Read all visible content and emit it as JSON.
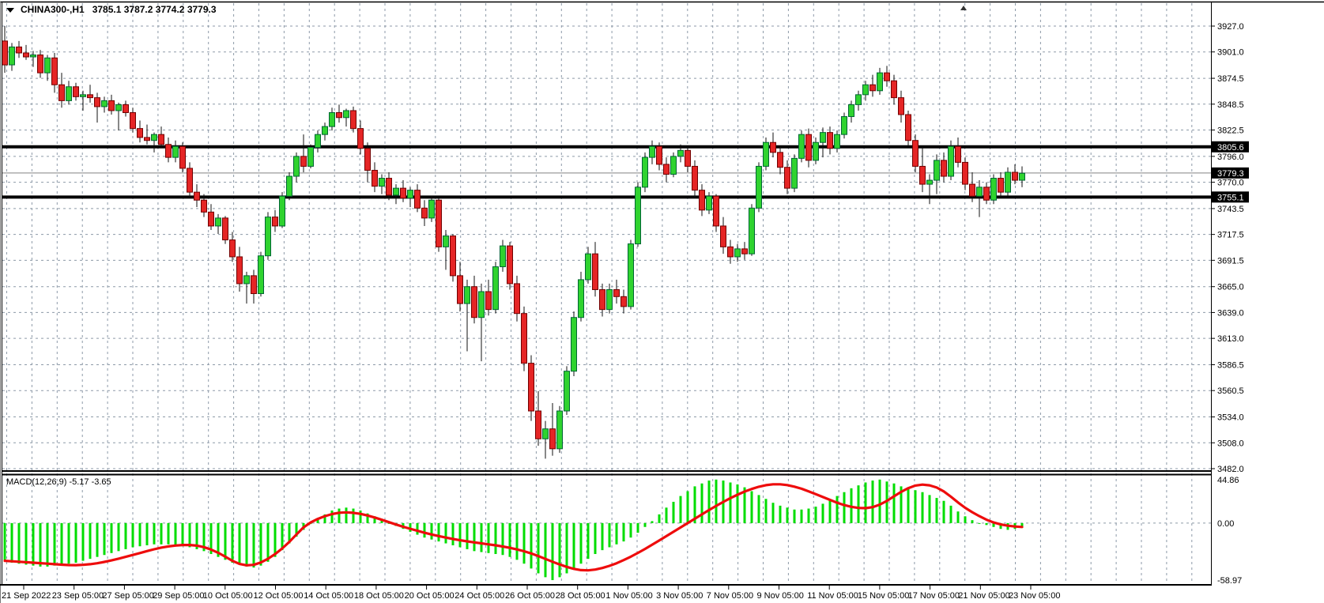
{
  "window": {
    "symbol_period": "CHINA300-,H1",
    "quote_line": "3785.1 3787.2 3774.2 3779.3"
  },
  "indicator": {
    "label": "MACD(12,26,9) -5.17 -3.65"
  },
  "colors": {
    "background": "#ffffff",
    "grid": "#8d9aa8",
    "bull_fill": "#2fd32f",
    "bull_stroke": "#063",
    "bear_fill": "#e52525",
    "bear_stroke": "#710000",
    "wick": "#111111",
    "macd_bar": "#00dd00",
    "macd_signal": "#ee0c0c",
    "level_line": "#000000",
    "price_line": "#9c9c9c",
    "axis_text": "#000000",
    "tag_bg": "#000000",
    "tag_text": "#ffffff"
  },
  "chart_data": {
    "type": "candlestick",
    "symbol": "CHINA300",
    "timeframe": "H1",
    "title": "CHINA300-,H1  3785.1 3787.2 3774.2 3779.3",
    "quote": {
      "open": 3785.1,
      "high": 3787.2,
      "low": 3774.2,
      "close": 3779.3
    },
    "current_price": 3779.3,
    "levels": [
      3805.6,
      3755.1
    ],
    "price_axis_ticks": [
      3927.0,
      3901.0,
      3874.5,
      3848.5,
      3822.5,
      3796.0,
      3770.0,
      3743.5,
      3717.5,
      3691.5,
      3665.0,
      3639.0,
      3613.0,
      3586.5,
      3560.5,
      3534.0,
      3508.0,
      3482.0
    ],
    "price_tags": [
      3805.6,
      3779.3,
      3755.1
    ],
    "ylim": [
      3482.0,
      3927.0
    ],
    "x_labels": [
      "21 Sep 2022",
      "23 Sep 05:00",
      "27 Sep 05:00",
      "29 Sep 05:00",
      "10 Oct 05:00",
      "12 Oct 05:00",
      "14 Oct 05:00",
      "18 Oct 05:00",
      "20 Oct 05:00",
      "24 Oct 05:00",
      "26 Oct 05:00",
      "28 Oct 05:00",
      "1 Nov 05:00",
      "3 Nov 05:00",
      "7 Nov 05:00",
      "9 Nov 05:00",
      "11 Nov 05:00",
      "15 Nov 05:00",
      "17 Nov 05:00",
      "21 Nov 05:00",
      "23 Nov 05:00"
    ],
    "candles": [
      [
        3912,
        3927,
        3880,
        3888
      ],
      [
        3888,
        3910,
        3882,
        3906
      ],
      [
        3906,
        3912,
        3895,
        3900
      ],
      [
        3900,
        3908,
        3893,
        3896
      ],
      [
        3896,
        3902,
        3886,
        3898
      ],
      [
        3898,
        3903,
        3875,
        3880
      ],
      [
        3880,
        3898,
        3872,
        3895
      ],
      [
        3895,
        3900,
        3860,
        3868
      ],
      [
        3868,
        3880,
        3845,
        3852
      ],
      [
        3852,
        3872,
        3848,
        3866
      ],
      [
        3866,
        3870,
        3852,
        3856
      ],
      [
        3856,
        3862,
        3842,
        3858
      ],
      [
        3858,
        3868,
        3850,
        3855
      ],
      [
        3855,
        3860,
        3830,
        3846
      ],
      [
        3846,
        3856,
        3840,
        3852
      ],
      [
        3852,
        3858,
        3838,
        3842
      ],
      [
        3842,
        3850,
        3822,
        3848
      ],
      [
        3848,
        3852,
        3836,
        3840
      ],
      [
        3840,
        3845,
        3820,
        3824
      ],
      [
        3824,
        3832,
        3810,
        3815
      ],
      [
        3815,
        3828,
        3808,
        3812
      ],
      [
        3812,
        3820,
        3800,
        3818
      ],
      [
        3818,
        3826,
        3805,
        3808
      ],
      [
        3808,
        3815,
        3790,
        3795
      ],
      [
        3795,
        3812,
        3790,
        3806
      ],
      [
        3806,
        3810,
        3780,
        3784
      ],
      [
        3784,
        3790,
        3755,
        3760
      ],
      [
        3760,
        3768,
        3745,
        3752
      ],
      [
        3752,
        3758,
        3735,
        3740
      ],
      [
        3740,
        3748,
        3722,
        3726
      ],
      [
        3726,
        3738,
        3718,
        3734
      ],
      [
        3734,
        3736,
        3708,
        3712
      ],
      [
        3712,
        3720,
        3690,
        3695
      ],
      [
        3695,
        3705,
        3660,
        3668
      ],
      [
        3668,
        3680,
        3648,
        3676
      ],
      [
        3676,
        3682,
        3648,
        3658
      ],
      [
        3658,
        3700,
        3655,
        3696
      ],
      [
        3696,
        3740,
        3692,
        3735
      ],
      [
        3735,
        3742,
        3720,
        3726
      ],
      [
        3726,
        3760,
        3724,
        3756
      ],
      [
        3756,
        3780,
        3752,
        3776
      ],
      [
        3776,
        3800,
        3770,
        3796
      ],
      [
        3796,
        3818,
        3780,
        3786
      ],
      [
        3786,
        3808,
        3784,
        3805
      ],
      [
        3805,
        3822,
        3800,
        3818
      ],
      [
        3818,
        3830,
        3812,
        3826
      ],
      [
        3826,
        3845,
        3822,
        3840
      ],
      [
        3840,
        3848,
        3830,
        3835
      ],
      [
        3835,
        3844,
        3826,
        3842
      ],
      [
        3842,
        3846,
        3820,
        3824
      ],
      [
        3824,
        3832,
        3798,
        3804
      ],
      [
        3804,
        3810,
        3770,
        3782
      ],
      [
        3782,
        3790,
        3760,
        3766
      ],
      [
        3766,
        3778,
        3758,
        3774
      ],
      [
        3774,
        3780,
        3752,
        3757
      ],
      [
        3757,
        3768,
        3748,
        3764
      ],
      [
        3764,
        3772,
        3750,
        3754
      ],
      [
        3754,
        3765,
        3745,
        3762
      ],
      [
        3762,
        3768,
        3740,
        3744
      ],
      [
        3744,
        3752,
        3726,
        3734
      ],
      [
        3734,
        3756,
        3730,
        3752
      ],
      [
        3752,
        3754,
        3700,
        3705
      ],
      [
        3705,
        3722,
        3682,
        3716
      ],
      [
        3716,
        3718,
        3670,
        3676
      ],
      [
        3676,
        3690,
        3640,
        3648
      ],
      [
        3648,
        3672,
        3600,
        3665
      ],
      [
        3665,
        3676,
        3628,
        3634
      ],
      [
        3634,
        3668,
        3590,
        3660
      ],
      [
        3660,
        3672,
        3636,
        3642
      ],
      [
        3642,
        3690,
        3638,
        3685
      ],
      [
        3685,
        3712,
        3680,
        3706
      ],
      [
        3706,
        3710,
        3662,
        3668
      ],
      [
        3668,
        3676,
        3630,
        3638
      ],
      [
        3638,
        3645,
        3580,
        3588
      ],
      [
        3588,
        3596,
        3530,
        3540
      ],
      [
        3540,
        3560,
        3505,
        3512
      ],
      [
        3512,
        3530,
        3492,
        3522
      ],
      [
        3522,
        3548,
        3495,
        3502
      ],
      [
        3502,
        3545,
        3498,
        3540
      ],
      [
        3540,
        3585,
        3536,
        3580
      ],
      [
        3580,
        3640,
        3575,
        3634
      ],
      [
        3634,
        3680,
        3630,
        3672
      ],
      [
        3672,
        3705,
        3668,
        3698
      ],
      [
        3698,
        3710,
        3655,
        3662
      ],
      [
        3662,
        3668,
        3635,
        3642
      ],
      [
        3642,
        3668,
        3638,
        3662
      ],
      [
        3662,
        3672,
        3648,
        3655
      ],
      [
        3655,
        3662,
        3638,
        3645
      ],
      [
        3645,
        3712,
        3642,
        3708
      ],
      [
        3708,
        3770,
        3705,
        3765
      ],
      [
        3765,
        3800,
        3760,
        3795
      ],
      [
        3795,
        3812,
        3788,
        3806
      ],
      [
        3806,
        3810,
        3782,
        3788
      ],
      [
        3788,
        3795,
        3770,
        3778
      ],
      [
        3778,
        3800,
        3775,
        3796
      ],
      [
        3796,
        3808,
        3790,
        3802
      ],
      [
        3802,
        3806,
        3780,
        3786
      ],
      [
        3786,
        3792,
        3755,
        3762
      ],
      [
        3762,
        3768,
        3736,
        3742
      ],
      [
        3742,
        3760,
        3738,
        3756
      ],
      [
        3756,
        3758,
        3720,
        3726
      ],
      [
        3726,
        3735,
        3698,
        3705
      ],
      [
        3705,
        3712,
        3688,
        3695
      ],
      [
        3695,
        3708,
        3690,
        3703
      ],
      [
        3703,
        3710,
        3692,
        3698
      ],
      [
        3698,
        3748,
        3696,
        3744
      ],
      [
        3744,
        3790,
        3740,
        3786
      ],
      [
        3786,
        3815,
        3782,
        3810
      ],
      [
        3810,
        3820,
        3795,
        3800
      ],
      [
        3800,
        3806,
        3778,
        3785
      ],
      [
        3785,
        3792,
        3758,
        3764
      ],
      [
        3764,
        3798,
        3760,
        3794
      ],
      [
        3794,
        3822,
        3790,
        3818
      ],
      [
        3818,
        3824,
        3785,
        3792
      ],
      [
        3792,
        3815,
        3788,
        3810
      ],
      [
        3810,
        3825,
        3795,
        3820
      ],
      [
        3820,
        3826,
        3798,
        3804
      ],
      [
        3804,
        3822,
        3800,
        3818
      ],
      [
        3818,
        3840,
        3814,
        3836
      ],
      [
        3836,
        3852,
        3830,
        3848
      ],
      [
        3848,
        3862,
        3842,
        3858
      ],
      [
        3858,
        3872,
        3852,
        3868
      ],
      [
        3868,
        3878,
        3856,
        3862
      ],
      [
        3862,
        3885,
        3858,
        3880
      ],
      [
        3880,
        3887,
        3866,
        3872
      ],
      [
        3872,
        3878,
        3848,
        3855
      ],
      [
        3855,
        3862,
        3830,
        3838
      ],
      [
        3838,
        3842,
        3806,
        3812
      ],
      [
        3812,
        3818,
        3780,
        3786
      ],
      [
        3786,
        3805,
        3760,
        3768
      ],
      [
        3768,
        3778,
        3748,
        3772
      ],
      [
        3772,
        3798,
        3758,
        3792
      ],
      [
        3792,
        3800,
        3770,
        3776
      ],
      [
        3776,
        3812,
        3772,
        3806
      ],
      [
        3806,
        3815,
        3785,
        3790
      ],
      [
        3790,
        3795,
        3762,
        3768
      ],
      [
        3768,
        3780,
        3750,
        3756
      ],
      [
        3756,
        3772,
        3735,
        3765
      ],
      [
        3765,
        3770,
        3748,
        3752
      ],
      [
        3752,
        3778,
        3748,
        3774
      ],
      [
        3774,
        3780,
        3755,
        3760
      ],
      [
        3760,
        3785,
        3756,
        3780
      ],
      [
        3780,
        3788,
        3768,
        3772
      ],
      [
        3772,
        3786,
        3765,
        3779
      ]
    ],
    "macd": {
      "settings": "12,26,9",
      "value": -5.17,
      "signal_value": -3.65,
      "axis_ticks": [
        44.86,
        0.0,
        -58.97
      ],
      "ylim": [
        -58.97,
        44.86
      ],
      "bars": [
        -40,
        -41,
        -42,
        -43,
        -44,
        -45,
        -45,
        -44,
        -43,
        -42,
        -41,
        -39,
        -37,
        -35,
        -33,
        -31,
        -29,
        -27,
        -25,
        -24,
        -23,
        -22,
        -22,
        -22,
        -23,
        -24,
        -25,
        -27,
        -29,
        -32,
        -35,
        -38,
        -41,
        -43,
        -45,
        -46,
        -44,
        -40,
        -35,
        -28,
        -21,
        -14,
        -7,
        -1,
        4,
        9,
        13,
        15,
        16,
        15,
        13,
        10,
        7,
        3,
        0,
        -3,
        -6,
        -9,
        -12,
        -15,
        -17,
        -19,
        -21,
        -23,
        -25,
        -27,
        -29,
        -30,
        -31,
        -32,
        -33,
        -35,
        -38,
        -42,
        -47,
        -52,
        -56,
        -59,
        -56,
        -52,
        -47,
        -42,
        -37,
        -32,
        -28,
        -25,
        -22,
        -19,
        -15,
        -10,
        -4,
        2,
        9,
        16,
        22,
        28,
        33,
        38,
        41,
        44,
        45,
        44,
        42,
        40,
        37,
        33,
        29,
        25,
        21,
        18,
        16,
        14,
        14,
        15,
        17,
        20,
        24,
        28,
        32,
        36,
        39,
        42,
        44,
        45,
        43,
        41,
        38,
        36,
        34,
        32,
        29,
        26,
        23,
        18,
        12,
        7,
        3,
        0,
        -2,
        -4,
        -6,
        -7,
        -6,
        -5
      ],
      "signal_keyframes": [
        [
          0,
          -39
        ],
        [
          4,
          -41
        ],
        [
          8,
          -43
        ],
        [
          10,
          -44
        ],
        [
          13,
          -42
        ],
        [
          16,
          -37
        ],
        [
          19,
          -31
        ],
        [
          22,
          -25
        ],
        [
          24,
          -23
        ],
        [
          26,
          -22
        ],
        [
          28,
          -24
        ],
        [
          30,
          -30
        ],
        [
          32,
          -39
        ],
        [
          33,
          -44
        ],
        [
          35,
          -45
        ],
        [
          37,
          -38
        ],
        [
          39,
          -27
        ],
        [
          41,
          -13
        ],
        [
          42,
          -2
        ],
        [
          44,
          5
        ],
        [
          46,
          10
        ],
        [
          48,
          12
        ],
        [
          50,
          10
        ],
        [
          52,
          6
        ],
        [
          54,
          1
        ],
        [
          56,
          -4
        ],
        [
          58,
          -8
        ],
        [
          60,
          -12
        ],
        [
          62,
          -15
        ],
        [
          64,
          -18
        ],
        [
          66,
          -20
        ],
        [
          68,
          -22
        ],
        [
          70,
          -24
        ],
        [
          72,
          -27
        ],
        [
          74,
          -31
        ],
        [
          76,
          -37
        ],
        [
          78,
          -43
        ],
        [
          80,
          -48
        ],
        [
          82,
          -50
        ],
        [
          84,
          -47
        ],
        [
          86,
          -42
        ],
        [
          88,
          -35
        ],
        [
          90,
          -27
        ],
        [
          92,
          -18
        ],
        [
          94,
          -9
        ],
        [
          96,
          0
        ],
        [
          98,
          9
        ],
        [
          100,
          18
        ],
        [
          102,
          26
        ],
        [
          104,
          33
        ],
        [
          106,
          38
        ],
        [
          108,
          41
        ],
        [
          110,
          40
        ],
        [
          112,
          36
        ],
        [
          114,
          30
        ],
        [
          116,
          24
        ],
        [
          118,
          18
        ],
        [
          120,
          15
        ],
        [
          122,
          15
        ],
        [
          124,
          22
        ],
        [
          126,
          33
        ],
        [
          128,
          40
        ],
        [
          129,
          41
        ],
        [
          130,
          40
        ],
        [
          131,
          38
        ],
        [
          132,
          34
        ],
        [
          133,
          28
        ],
        [
          134,
          21
        ],
        [
          135,
          15
        ],
        [
          136,
          11
        ],
        [
          137,
          7
        ],
        [
          138,
          3
        ],
        [
          139,
          0
        ],
        [
          140,
          -2
        ],
        [
          141,
          -3
        ],
        [
          142,
          -4
        ],
        [
          143,
          -4
        ]
      ]
    }
  }
}
